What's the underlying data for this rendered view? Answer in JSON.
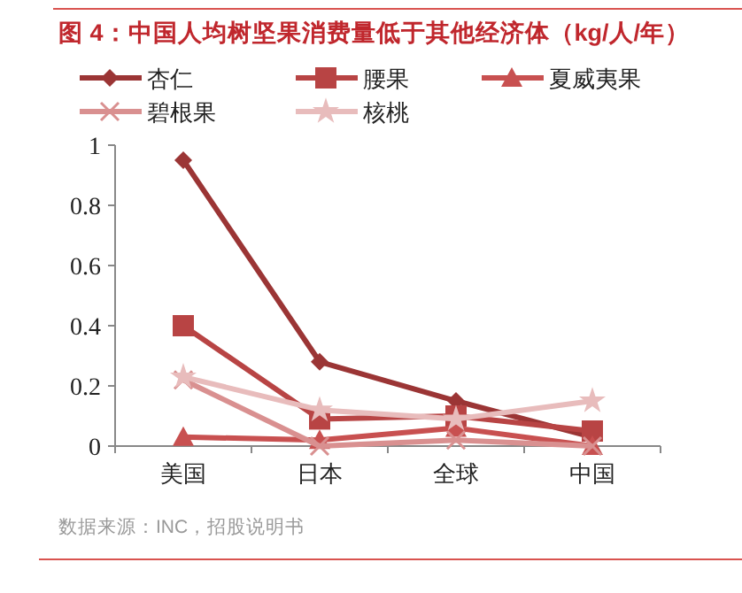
{
  "chart_data": {
    "type": "line",
    "title": "图 4：中国人均树坚果消费量低于其他经济体（kg/人/年）",
    "categories": [
      "美国",
      "日本",
      "全球",
      "中国"
    ],
    "series": [
      {
        "name": "杏仁",
        "color": "#9b3535",
        "marker": "diamond",
        "values": [
          0.95,
          0.28,
          0.15,
          0.03
        ]
      },
      {
        "name": "腰果",
        "color": "#b84444",
        "marker": "square",
        "values": [
          0.4,
          0.09,
          0.1,
          0.05
        ]
      },
      {
        "name": "夏威夷果",
        "color": "#c85050",
        "marker": "triangle",
        "values": [
          0.03,
          0.02,
          0.06,
          0.0
        ]
      },
      {
        "name": "碧根果",
        "color": "#d99090",
        "marker": "cross",
        "values": [
          0.22,
          0.0,
          0.02,
          0.0
        ]
      },
      {
        "name": "核桃",
        "color": "#e8bcbc",
        "marker": "star",
        "values": [
          0.23,
          0.12,
          0.09,
          0.15
        ]
      }
    ],
    "ylim": [
      0,
      1
    ],
    "yticks": [
      0,
      0.2,
      0.4,
      0.6,
      0.8,
      1
    ],
    "grid": false,
    "legend": "top",
    "line_style": "solid",
    "annotations": [
      "数据来源：INC，招股说明书"
    ]
  }
}
